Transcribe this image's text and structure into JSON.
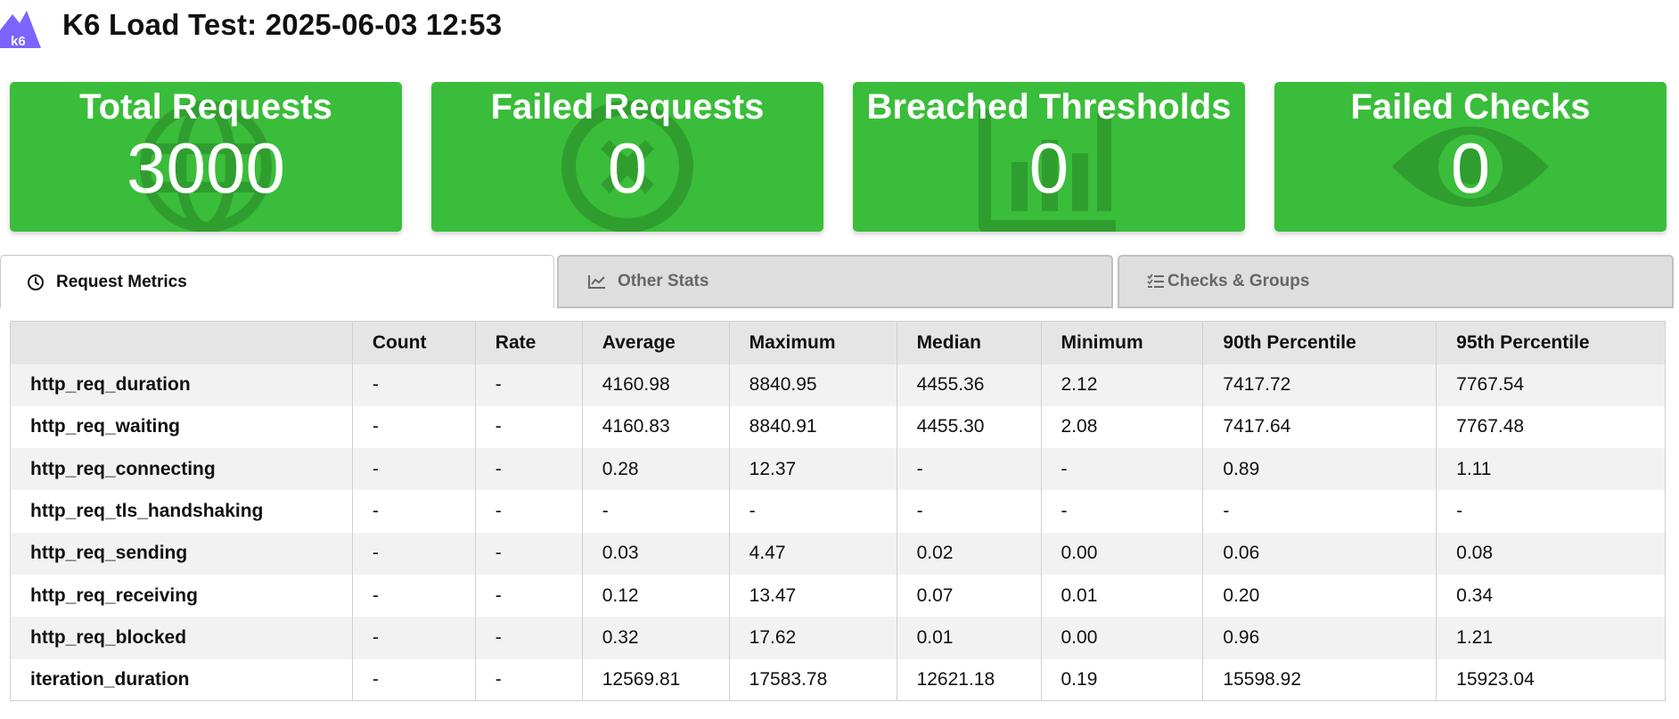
{
  "header": {
    "logo_text": "k6",
    "title": "K6 Load Test: 2025-06-03 12:53"
  },
  "colors": {
    "card_green": "#3abd3a",
    "card_icon": "#2f9e2f",
    "logo_purple": "#7d64ff"
  },
  "cards": [
    {
      "title": "Total Requests",
      "value": "3000",
      "icon": "globe-icon"
    },
    {
      "title": "Failed Requests",
      "value": "0",
      "icon": "x-circle-icon"
    },
    {
      "title": "Breached Thresholds",
      "value": "0",
      "icon": "bar-chart-icon"
    },
    {
      "title": "Failed Checks",
      "value": "0",
      "icon": "eye-icon"
    }
  ],
  "tabs": [
    {
      "label": "Request Metrics",
      "icon": "clock-icon",
      "active": true
    },
    {
      "label": "Other Stats",
      "icon": "line-chart-icon",
      "active": false
    },
    {
      "label": "Checks & Groups",
      "icon": "checklist-icon",
      "active": false
    }
  ],
  "table": {
    "columns": [
      "",
      "Count",
      "Rate",
      "Average",
      "Maximum",
      "Median",
      "Minimum",
      "90th Percentile",
      "95th Percentile"
    ],
    "rows": [
      [
        "http_req_duration",
        "-",
        "-",
        "4160.98",
        "8840.95",
        "4455.36",
        "2.12",
        "7417.72",
        "7767.54"
      ],
      [
        "http_req_waiting",
        "-",
        "-",
        "4160.83",
        "8840.91",
        "4455.30",
        "2.08",
        "7417.64",
        "7767.48"
      ],
      [
        "http_req_connecting",
        "-",
        "-",
        "0.28",
        "12.37",
        "-",
        "-",
        "0.89",
        "1.11"
      ],
      [
        "http_req_tls_handshaking",
        "-",
        "-",
        "-",
        "-",
        "-",
        "-",
        "-",
        "-"
      ],
      [
        "http_req_sending",
        "-",
        "-",
        "0.03",
        "4.47",
        "0.02",
        "0.00",
        "0.06",
        "0.08"
      ],
      [
        "http_req_receiving",
        "-",
        "-",
        "0.12",
        "13.47",
        "0.07",
        "0.01",
        "0.20",
        "0.34"
      ],
      [
        "http_req_blocked",
        "-",
        "-",
        "0.32",
        "17.62",
        "0.01",
        "0.00",
        "0.96",
        "1.21"
      ],
      [
        "iteration_duration",
        "-",
        "-",
        "12569.81",
        "17583.78",
        "12621.18",
        "0.19",
        "15598.92",
        "15923.04"
      ]
    ]
  }
}
